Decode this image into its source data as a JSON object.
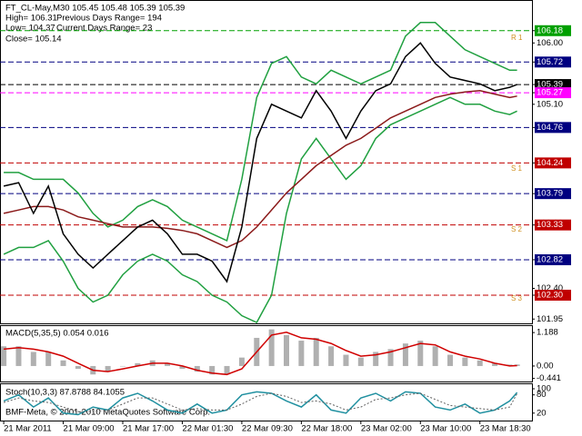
{
  "copyright": "BMF-Meta, © 2001-2010 MetaQuotes Software Corp.",
  "chart_data": [
    {
      "type": "line",
      "title": "FT_CL-May,M30  105.45 105.48 105.39 105.39",
      "info": [
        "High= 106.31",
        "Previous Days Range= 194",
        "Low= 104.37",
        "Current Days Range= 23",
        "Close= 105.14"
      ],
      "level_labels": [
        "R 1",
        "S 1",
        "S 2",
        "S 3"
      ],
      "x": [
        0,
        4,
        8,
        12,
        16,
        20,
        24,
        28,
        32,
        36,
        40,
        44,
        48,
        52,
        56,
        60,
        64,
        68,
        72,
        76,
        80,
        84,
        88,
        92,
        96,
        100,
        104,
        108,
        112,
        116,
        120,
        124,
        128,
        132,
        136,
        138
      ],
      "xlim": [
        -1,
        142
      ],
      "ylim": [
        101.9,
        106.63
      ],
      "yticks": [
        106.18,
        {
          "value": 106.0,
          "label": "106.00"
        },
        105.72,
        105.39,
        105.27,
        {
          "value": 105.1,
          "label": "105.10"
        },
        104.76,
        104.24,
        103.79,
        103.33,
        102.82,
        {
          "value": 102.4,
          "label": "102.40"
        },
        {
          "value": 102.3,
          "label": "102.30"
        },
        101.95
      ],
      "ytick_colors": [
        "#00a000",
        null,
        "#000080",
        "#000000",
        "#ff00ff",
        null,
        "#000080",
        "#c00000",
        "#000080",
        "#c00000",
        "#000080",
        null,
        "#c00000",
        null
      ],
      "series": [
        {
          "style": "line",
          "color": "#20a040",
          "values": [
            104.1,
            104.1,
            104.0,
            104.0,
            104.0,
            103.8,
            103.5,
            103.3,
            103.4,
            103.6,
            103.7,
            103.6,
            103.4,
            103.3,
            103.2,
            103.1,
            104.0,
            105.2,
            105.7,
            105.8,
            105.5,
            105.4,
            105.6,
            105.5,
            105.4,
            105.5,
            105.6,
            106.1,
            106.3,
            106.3,
            106.1,
            105.9,
            105.8,
            105.7,
            105.6,
            105.6
          ]
        },
        {
          "style": "line",
          "color": "#20a040",
          "values": [
            102.9,
            103.0,
            103.0,
            103.1,
            102.8,
            102.4,
            102.2,
            102.3,
            102.6,
            102.8,
            102.9,
            102.8,
            102.6,
            102.5,
            102.3,
            102.2,
            102.0,
            101.9,
            102.3,
            103.5,
            104.3,
            104.6,
            104.3,
            104.0,
            104.2,
            104.6,
            104.8,
            104.9,
            105.0,
            105.1,
            105.2,
            105.1,
            105.1,
            105.0,
            104.95,
            105.0
          ]
        },
        {
          "style": "line",
          "color": "#8b1a1a",
          "values": [
            103.5,
            103.55,
            103.6,
            103.6,
            103.55,
            103.45,
            103.4,
            103.35,
            103.3,
            103.3,
            103.3,
            103.28,
            103.25,
            103.2,
            103.1,
            103.0,
            103.1,
            103.3,
            103.55,
            103.8,
            104.0,
            104.2,
            104.35,
            104.5,
            104.6,
            104.75,
            104.9,
            105.0,
            105.1,
            105.2,
            105.25,
            105.28,
            105.3,
            105.25,
            105.2,
            105.22
          ]
        },
        {
          "style": "line",
          "color": "#000000",
          "values": [
            103.9,
            103.95,
            103.5,
            103.9,
            103.2,
            102.9,
            102.7,
            102.9,
            103.1,
            103.3,
            103.4,
            103.2,
            102.9,
            102.9,
            102.8,
            102.5,
            103.3,
            104.6,
            105.1,
            105.0,
            104.9,
            105.3,
            105.0,
            104.6,
            105.0,
            105.3,
            105.4,
            105.8,
            106.0,
            105.7,
            105.5,
            105.45,
            105.4,
            105.3,
            105.35,
            105.39
          ]
        }
      ]
    },
    {
      "type": "line",
      "title": "MACD(5,35,5) 0.054 0.016",
      "x": [
        0,
        4,
        8,
        12,
        16,
        20,
        24,
        28,
        32,
        36,
        40,
        44,
        48,
        52,
        56,
        60,
        64,
        68,
        72,
        76,
        80,
        84,
        88,
        92,
        96,
        100,
        104,
        108,
        112,
        116,
        120,
        124,
        128,
        132,
        136,
        138
      ],
      "xlim": [
        -1,
        142
      ],
      "ylim": [
        -0.55,
        1.45
      ],
      "yticks": [
        1.188,
        {
          "value": 0,
          "label": "0.00"
        },
        -0.441
      ],
      "series": [
        {
          "style": "histogram",
          "color": "#b0b0b0",
          "values": [
            0.7,
            0.7,
            0.5,
            0.5,
            0.2,
            -0.1,
            -0.3,
            -0.2,
            0,
            0.1,
            0.2,
            0.1,
            -0.1,
            -0.2,
            -0.3,
            -0.3,
            0.3,
            1.0,
            1.3,
            1.1,
            0.9,
            1.0,
            0.7,
            0.4,
            0.3,
            0.5,
            0.6,
            0.8,
            0.9,
            0.7,
            0.4,
            0.3,
            0.2,
            0.1,
            0.05,
            0.054
          ]
        },
        {
          "style": "line",
          "color": "#d00000",
          "values": [
            0.6,
            0.65,
            0.6,
            0.5,
            0.35,
            0.1,
            -0.15,
            -0.2,
            -0.1,
            0,
            0.1,
            0.1,
            0,
            -0.15,
            -0.25,
            -0.3,
            -0.1,
            0.5,
            1.1,
            1.2,
            1.0,
            0.95,
            0.8,
            0.55,
            0.35,
            0.4,
            0.5,
            0.65,
            0.8,
            0.75,
            0.5,
            0.35,
            0.25,
            0.1,
            0.0,
            0.016
          ]
        }
      ]
    },
    {
      "type": "line",
      "title": "Stoch(10,3,3) 87.8788 84.1055",
      "x": [
        0,
        4,
        8,
        12,
        16,
        20,
        24,
        28,
        32,
        36,
        40,
        44,
        48,
        52,
        56,
        60,
        64,
        68,
        72,
        76,
        80,
        84,
        88,
        92,
        96,
        100,
        104,
        108,
        112,
        116,
        120,
        124,
        128,
        132,
        136,
        138
      ],
      "xlim": [
        -1,
        142
      ],
      "ylim": [
        0,
        100
      ],
      "yticks": [
        100,
        80,
        20
      ],
      "xticks": [
        {
          "value": 0,
          "label": "21 Mar 2011"
        },
        {
          "value": 16,
          "label": "21 Mar 09:00"
        },
        {
          "value": 32,
          "label": "21 Mar 17:00"
        },
        {
          "value": 48,
          "label": "22 Mar 01:30"
        },
        {
          "value": 64,
          "label": "22 Mar 09:30"
        },
        {
          "value": 80,
          "label": "22 Mar 18:00"
        },
        {
          "value": 96,
          "label": "23 Mar 02:00"
        },
        {
          "value": 112,
          "label": "23 Mar 10:00"
        },
        {
          "value": 128,
          "label": "23 Mar 18:30"
        }
      ],
      "series": [
        {
          "style": "line",
          "color": "#2090a0",
          "values": [
            60,
            80,
            40,
            70,
            20,
            15,
            40,
            30,
            70,
            85,
            60,
            30,
            20,
            50,
            20,
            30,
            80,
            90,
            85,
            60,
            40,
            80,
            30,
            20,
            70,
            85,
            60,
            90,
            85,
            40,
            30,
            50,
            20,
            30,
            60,
            87.88
          ]
        },
        {
          "style": "dashed",
          "color": "#606060",
          "values": [
            55,
            70,
            60,
            55,
            40,
            25,
            25,
            30,
            50,
            70,
            70,
            50,
            30,
            35,
            30,
            30,
            50,
            75,
            85,
            75,
            55,
            60,
            50,
            30,
            40,
            65,
            70,
            80,
            85,
            65,
            45,
            40,
            35,
            30,
            40,
            84.11
          ]
        }
      ]
    }
  ]
}
